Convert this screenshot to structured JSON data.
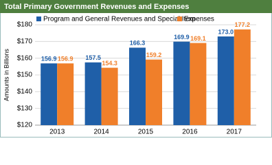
{
  "chart_data": {
    "type": "bar",
    "title": "Total Primary Government Revenues and Expenses",
    "y_label": "Amounts in Billions",
    "categories": [
      "2013",
      "2014",
      "2015",
      "2016",
      "2017"
    ],
    "series": [
      {
        "name": "Program and General Revenues and Special Item",
        "color": "#1f5fa8",
        "values": [
          156.9,
          157.5,
          166.3,
          169.9,
          173.0
        ],
        "value_labels": [
          "156.9",
          "157.5",
          "166.3",
          "169.9",
          "173.0"
        ]
      },
      {
        "name": "Expenses",
        "color": "#f07f2a",
        "values": [
          156.9,
          154.3,
          159.2,
          169.1,
          177.2
        ],
        "value_labels": [
          "156.9",
          "154.3",
          "159.2",
          "169.1",
          "177.2"
        ]
      }
    ],
    "ylim": [
      120,
      180
    ],
    "yticks": [
      {
        "value": 120,
        "label": "$120"
      },
      {
        "value": 130,
        "label": "$130"
      },
      {
        "value": 140,
        "label": "$140"
      },
      {
        "value": 150,
        "label": "$150"
      },
      {
        "value": 160,
        "label": "$160"
      },
      {
        "value": 170,
        "label": "$170"
      },
      {
        "value": 180,
        "label": "$180"
      }
    ],
    "grid": true
  }
}
